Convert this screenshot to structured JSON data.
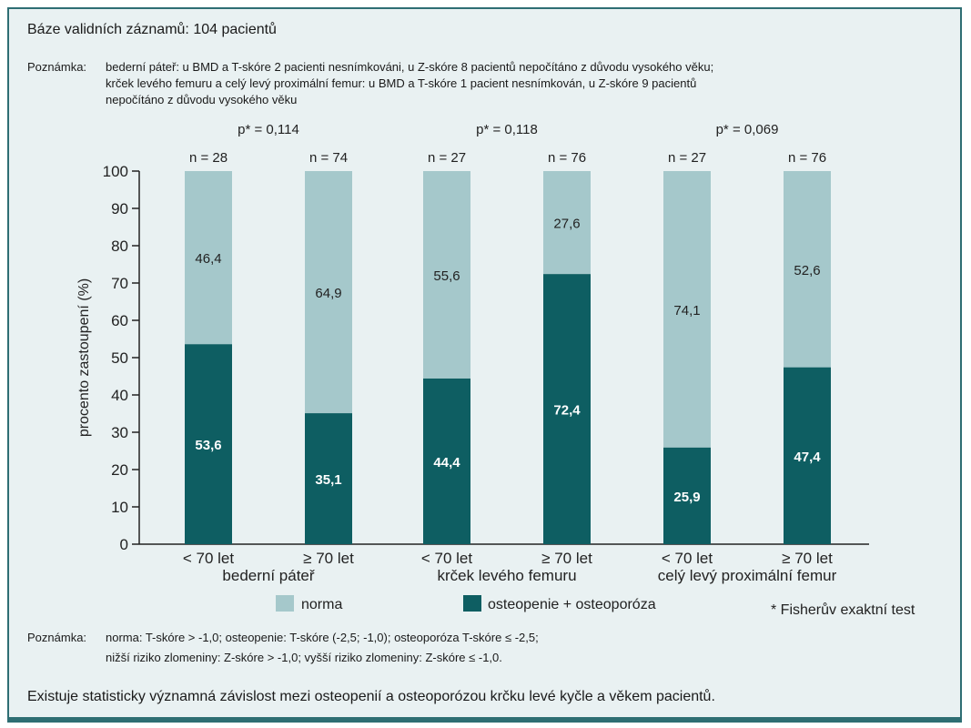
{
  "header": {
    "base": "Báze validních záznamů: 104 pacientů",
    "note_label": "Poznámka:",
    "note_lines": [
      "bederní páteř: u BMD a T-skóre 2 pacienti nesnímkováni, u Z-skóre 8 pacientů nepočítáno z důvodu vysokého věku;",
      "krček levého femuru a celý levý proximální femur: u BMD a T-skóre 1 pacient nesnímkován, u Z-skóre 9 pacientů",
      "nepočítáno z důvodu vysokého věku"
    ]
  },
  "colors": {
    "norma": "#a5c8cb",
    "osteo": "#0e5e62",
    "frame_bg": "#e9f1f2",
    "frame_border": "#2e6e73"
  },
  "chart_data": {
    "type": "bar",
    "stacked": true,
    "ylabel": "procento zastoupení (%)",
    "ylim": [
      0,
      100
    ],
    "yticks": [
      "0",
      "10",
      "20",
      "30",
      "40",
      "50",
      "60",
      "70",
      "80",
      "90",
      "100"
    ],
    "categories": [
      "< 70 let",
      "≥ 70 let",
      "< 70 let",
      "≥ 70 let",
      "< 70 let",
      "≥ 70 let"
    ],
    "groups": [
      {
        "label": "bederní páteř",
        "p_value": "p* = 0,114"
      },
      {
        "label": "krček levého femuru",
        "p_value": "p* = 0,118"
      },
      {
        "label": "celý levý proximální femur",
        "p_value": "p* = 0,069"
      }
    ],
    "n_labels": [
      "n = 28",
      "n = 74",
      "n = 27",
      "n = 76",
      "n = 27",
      "n = 76"
    ],
    "series": [
      {
        "name": "osteopenie + osteoporóza",
        "values": [
          53.6,
          35.1,
          44.4,
          72.4,
          25.9,
          47.4
        ],
        "labels": [
          "53,6",
          "35,1",
          "44,4",
          "72,4",
          "25,9",
          "47,4"
        ]
      },
      {
        "name": "norma",
        "values": [
          46.4,
          64.9,
          55.6,
          27.6,
          74.1,
          52.6
        ],
        "labels": [
          "46,4",
          "64,9",
          "55,6",
          "27,6",
          "74,1",
          "52,6"
        ]
      }
    ],
    "legend": {
      "norma": "norma",
      "osteo": "osteopenie + osteoporóza",
      "test": "* Fisherův exaktní test"
    }
  },
  "footer": {
    "note_label": "Poznámka:",
    "note_lines": [
      "norma: T-skóre > -1,0; osteopenie: T-skóre (-2,5; -1,0); osteoporóza T-skóre ≤ -2,5;",
      "nižší riziko zlomeniny: Z-skóre > -1,0; vyšší riziko zlomeniny: Z-skóre ≤ -1,0."
    ],
    "conclusion": "Existuje statisticky významná závislost mezi osteopenií a osteoporózou krčku levé kyčle a věkem pacientů."
  }
}
